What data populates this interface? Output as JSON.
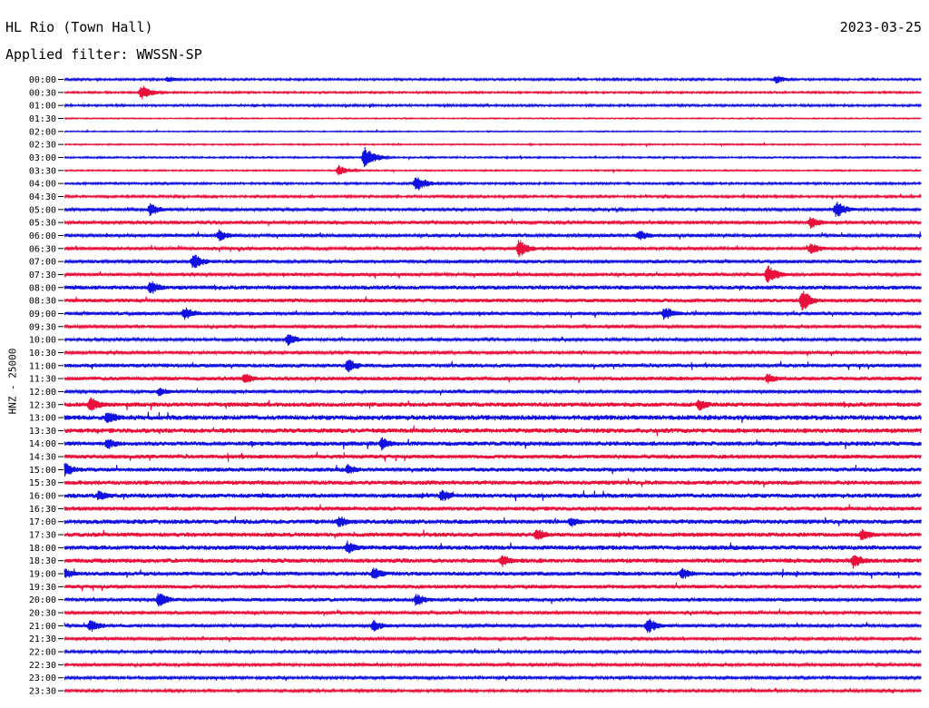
{
  "header": {
    "station": "HL Rio (Town Hall)",
    "date": "2023-03-25",
    "filter": "Applied filter: WWSSN-SP"
  },
  "axis": {
    "ylabel": "HNZ - 25000"
  },
  "chart_data": {
    "type": "line",
    "title": "HL Rio (Town Hall)",
    "subtitle": "Applied filter: WWSSN-SP",
    "ylabel": "HNZ - 25000",
    "time_labels": [
      "00:00",
      "00:30",
      "01:00",
      "01:30",
      "02:00",
      "02:30",
      "03:00",
      "03:30",
      "04:00",
      "04:30",
      "05:00",
      "05:30",
      "06:00",
      "06:30",
      "07:00",
      "07:30",
      "08:00",
      "08:30",
      "09:00",
      "09:30",
      "10:00",
      "10:30",
      "11:00",
      "11:30",
      "12:00",
      "12:30",
      "13:00",
      "13:30",
      "14:00",
      "14:30",
      "15:00",
      "15:30",
      "16:00",
      "16:30",
      "17:00",
      "17:30",
      "18:00",
      "18:30",
      "19:00",
      "19:30",
      "20:00",
      "20:30",
      "21:00",
      "21:30",
      "22:00",
      "22:30",
      "23:00",
      "23:30"
    ],
    "row_colors": [
      "#1010e0",
      "#e8103a"
    ],
    "noise_levels": [
      0.9,
      0.8,
      0.9,
      0.5,
      0.5,
      0.6,
      0.7,
      0.6,
      0.9,
      1.0,
      1.3,
      1.4,
      1.4,
      1.3,
      1.5,
      1.4,
      1.8,
      1.6,
      1.5,
      1.3,
      1.2,
      1.3,
      1.6,
      1.7,
      1.4,
      2.0,
      2.2,
      2.1,
      2.0,
      1.8,
      1.8,
      1.9,
      2.0,
      1.8,
      2.0,
      1.9,
      2.0,
      2.0,
      1.8,
      1.7,
      1.6,
      1.4,
      1.4,
      1.3,
      1.2,
      1.3,
      1.2,
      1.1
    ],
    "events": [
      {
        "row": 0,
        "x": 0.12,
        "a": 4
      },
      {
        "row": 0,
        "x": 0.83,
        "a": 5
      },
      {
        "row": 1,
        "x": 0.09,
        "a": 9
      },
      {
        "row": 6,
        "x": 0.35,
        "a": 12
      },
      {
        "row": 7,
        "x": 0.32,
        "a": 6
      },
      {
        "row": 8,
        "x": 0.41,
        "a": 10
      },
      {
        "row": 10,
        "x": 0.1,
        "a": 8
      },
      {
        "row": 10,
        "x": 0.9,
        "a": 10
      },
      {
        "row": 11,
        "x": 0.87,
        "a": 8
      },
      {
        "row": 12,
        "x": 0.18,
        "a": 7
      },
      {
        "row": 12,
        "x": 0.67,
        "a": 7
      },
      {
        "row": 13,
        "x": 0.53,
        "a": 11
      },
      {
        "row": 13,
        "x": 0.87,
        "a": 8
      },
      {
        "row": 14,
        "x": 0.15,
        "a": 10
      },
      {
        "row": 15,
        "x": 0.82,
        "a": 12
      },
      {
        "row": 16,
        "x": 0.1,
        "a": 9
      },
      {
        "row": 17,
        "x": 0.86,
        "a": 13
      },
      {
        "row": 18,
        "x": 0.14,
        "a": 9
      },
      {
        "row": 18,
        "x": 0.7,
        "a": 9
      },
      {
        "row": 20,
        "x": 0.26,
        "a": 8
      },
      {
        "row": 22,
        "x": 0.33,
        "a": 9
      },
      {
        "row": 23,
        "x": 0.21,
        "a": 7
      },
      {
        "row": 23,
        "x": 0.82,
        "a": 7
      },
      {
        "row": 24,
        "x": 0.11,
        "a": 6
      },
      {
        "row": 25,
        "x": 0.03,
        "a": 10
      },
      {
        "row": 25,
        "x": 0.74,
        "a": 8
      },
      {
        "row": 26,
        "x": 0.05,
        "a": 9
      },
      {
        "row": 28,
        "x": 0.05,
        "a": 8
      },
      {
        "row": 28,
        "x": 0.37,
        "a": 8
      },
      {
        "row": 30,
        "x": 0.0,
        "a": 9
      },
      {
        "row": 30,
        "x": 0.33,
        "a": 7
      },
      {
        "row": 32,
        "x": 0.04,
        "a": 7
      },
      {
        "row": 32,
        "x": 0.44,
        "a": 8
      },
      {
        "row": 34,
        "x": 0.32,
        "a": 8
      },
      {
        "row": 34,
        "x": 0.59,
        "a": 7
      },
      {
        "row": 35,
        "x": 0.55,
        "a": 9
      },
      {
        "row": 35,
        "x": 0.93,
        "a": 8
      },
      {
        "row": 36,
        "x": 0.33,
        "a": 8
      },
      {
        "row": 37,
        "x": 0.51,
        "a": 8
      },
      {
        "row": 37,
        "x": 0.92,
        "a": 10
      },
      {
        "row": 38,
        "x": 0.0,
        "a": 7
      },
      {
        "row": 38,
        "x": 0.36,
        "a": 8
      },
      {
        "row": 38,
        "x": 0.72,
        "a": 8
      },
      {
        "row": 40,
        "x": 0.11,
        "a": 9
      },
      {
        "row": 40,
        "x": 0.41,
        "a": 8
      },
      {
        "row": 42,
        "x": 0.03,
        "a": 8
      },
      {
        "row": 42,
        "x": 0.36,
        "a": 8
      },
      {
        "row": 42,
        "x": 0.68,
        "a": 10
      }
    ]
  }
}
